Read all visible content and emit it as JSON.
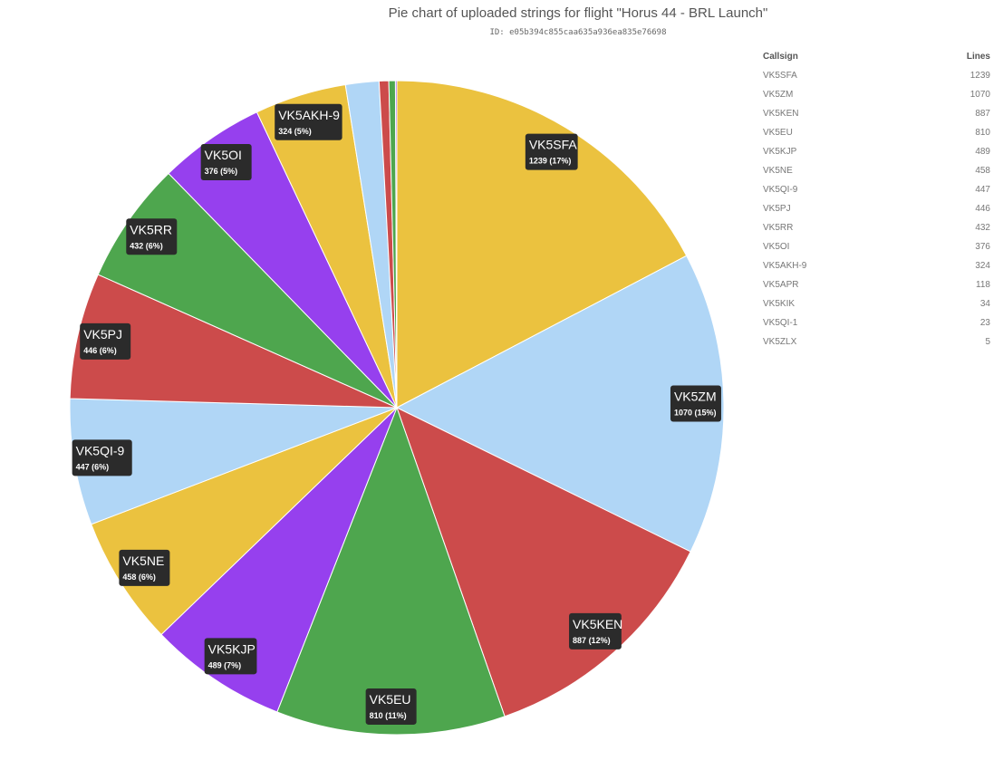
{
  "title": "Pie chart of uploaded strings for flight \"Horus 44 - BRL Launch\"",
  "subtitle": "ID: e05b394c855caa635a936ea835e76698",
  "table": {
    "headers": [
      "Callsign",
      "Lines"
    ],
    "rows": [
      [
        "VK5SFA",
        "1239"
      ],
      [
        "VK5ZM",
        "1070"
      ],
      [
        "VK5KEN",
        "887"
      ],
      [
        "VK5EU",
        "810"
      ],
      [
        "VK5KJP",
        "489"
      ],
      [
        "VK5NE",
        "458"
      ],
      [
        "VK5QI-9",
        "447"
      ],
      [
        "VK5PJ",
        "446"
      ],
      [
        "VK5RR",
        "432"
      ],
      [
        "VK5OI",
        "376"
      ],
      [
        "VK5AKH-9",
        "324"
      ],
      [
        "VK5APR",
        "118"
      ],
      [
        "VK5KIK",
        "34"
      ],
      [
        "VK5QI-1",
        "23"
      ],
      [
        "VK5ZLX",
        "5"
      ]
    ]
  },
  "chart_data": {
    "type": "pie",
    "title": "Pie chart of uploaded strings for flight \"Horus 44 - BRL Launch\"",
    "slices": [
      {
        "label": "VK5SFA",
        "value": 1239,
        "display": "1239 (17%)",
        "color": "#ebc23f"
      },
      {
        "label": "VK5ZM",
        "value": 1070,
        "display": "1070 (15%)",
        "color": "#b0d6f6"
      },
      {
        "label": "VK5KEN",
        "value": 887,
        "display": "887 (12%)",
        "color": "#cc4b4b"
      },
      {
        "label": "VK5EU",
        "value": 810,
        "display": "810 (11%)",
        "color": "#4ea64e"
      },
      {
        "label": "VK5KJP",
        "value": 489,
        "display": "489 (7%)",
        "color": "#9640ee"
      },
      {
        "label": "VK5NE",
        "value": 458,
        "display": "458 (6%)",
        "color": "#ebc23f"
      },
      {
        "label": "VK5QI-9",
        "value": 447,
        "display": "447 (6%)",
        "color": "#b0d6f6"
      },
      {
        "label": "VK5PJ",
        "value": 446,
        "display": "446 (6%)",
        "color": "#cc4b4b"
      },
      {
        "label": "VK5RR",
        "value": 432,
        "display": "432 (6%)",
        "color": "#4ea64e"
      },
      {
        "label": "VK5OI",
        "value": 376,
        "display": "376 (5%)",
        "color": "#9640ee"
      },
      {
        "label": "VK5AKH-9",
        "value": 324,
        "display": "324 (5%)",
        "color": "#ebc23f"
      },
      {
        "label": "VK5APR",
        "value": 118,
        "display": "",
        "color": "#b0d6f6"
      },
      {
        "label": "VK5KIK",
        "value": 34,
        "display": "",
        "color": "#cc4b4b"
      },
      {
        "label": "VK5QI-1",
        "value": 23,
        "display": "",
        "color": "#4ea64e"
      },
      {
        "label": "VK5ZLX",
        "value": 5,
        "display": "",
        "color": "#9640ee"
      }
    ]
  }
}
